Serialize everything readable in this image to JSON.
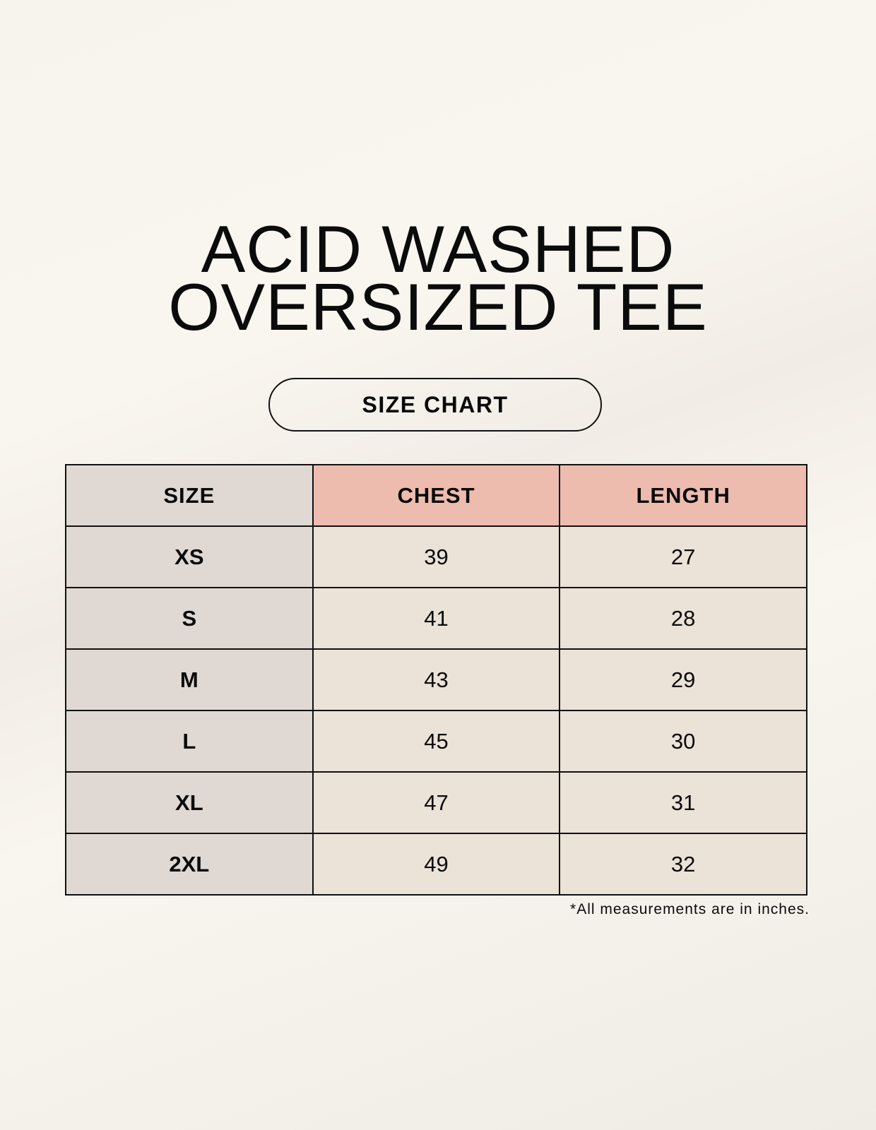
{
  "title": {
    "line1": "ACID WASHED",
    "line2": "OVERSIZED TEE"
  },
  "badge": "SIZE CHART",
  "table": {
    "headers": [
      "SIZE",
      "CHEST",
      "LENGTH"
    ],
    "rows": [
      [
        "XS",
        "39",
        "27"
      ],
      [
        "S",
        "41",
        "28"
      ],
      [
        "M",
        "43",
        "29"
      ],
      [
        "L",
        "45",
        "30"
      ],
      [
        "XL",
        "47",
        "31"
      ],
      [
        "2XL",
        "49",
        "32"
      ]
    ]
  },
  "footnote": "*All measurements are in inches.",
  "colors": {
    "header_highlight": "#edbcae",
    "size_column": "#e0d8d2",
    "cells": "#ebe2d8"
  }
}
